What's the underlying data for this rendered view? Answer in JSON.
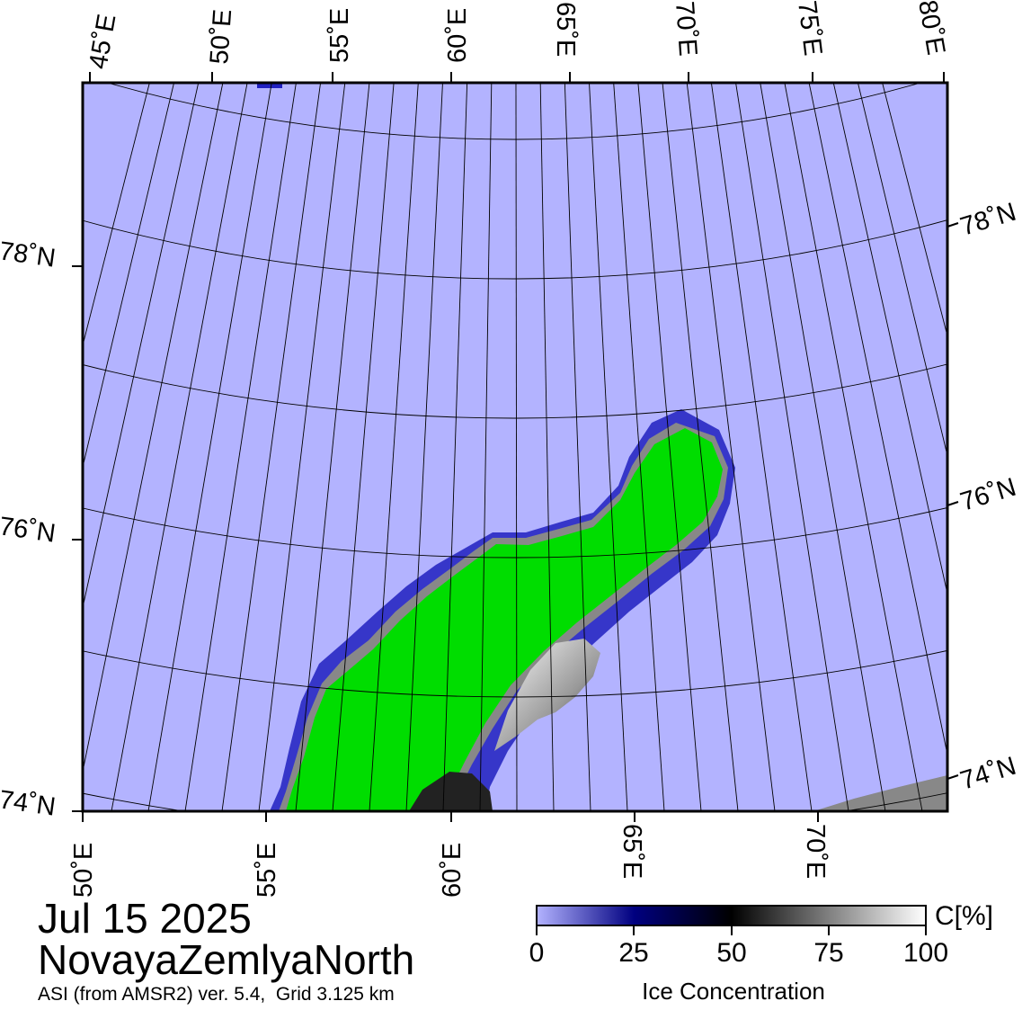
{
  "map": {
    "date": "Jul 15 2025",
    "region": "NovayaZemlyaNorth",
    "credit": "ASI (from AMSR2) ver. 5.4,  Grid 3.125 km",
    "top_lon_labels": [
      "45˚E",
      "50˚E",
      "55˚E",
      "60˚E",
      "65˚E",
      "70˚E",
      "75˚E",
      "80˚E"
    ],
    "bottom_lon_labels": [
      "50˚E",
      "55˚E",
      "60˚E",
      "65˚E",
      "70˚E"
    ],
    "left_lat_labels": [
      "78˚N",
      "76˚N",
      "74˚N"
    ],
    "right_lat_labels": [
      "78˚N",
      "76˚N",
      "74˚N"
    ],
    "colors": {
      "open_water": "#b3b3ff",
      "land": "#00dd00",
      "coast_mask": "#888888",
      "graticule": "#000000"
    }
  },
  "colorbar": {
    "title": "Ice Concentration",
    "unit": "C[%]",
    "labels": [
      "0",
      "25",
      "50",
      "75",
      "100"
    ],
    "stops": [
      {
        "pct": 0,
        "color": "#b3b3ff"
      },
      {
        "pct": 25,
        "color": "#000080"
      },
      {
        "pct": 50,
        "color": "#000000"
      },
      {
        "pct": 100,
        "color": "#ffffff"
      }
    ]
  }
}
